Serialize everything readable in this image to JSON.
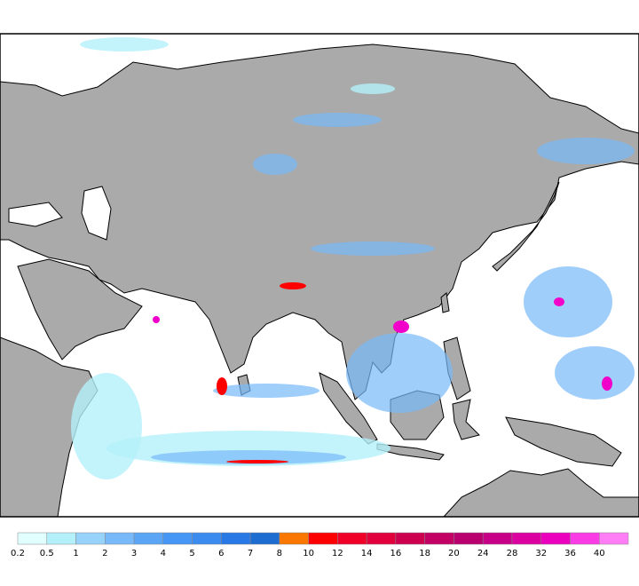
{
  "colorbar": {
    "labels": [
      "0.2",
      "0.5",
      "1",
      "2",
      "3",
      "4",
      "5",
      "6",
      "7",
      "8",
      "10",
      "12",
      "14",
      "16",
      "18",
      "20",
      "24",
      "28",
      "32",
      "36",
      "40"
    ],
    "colors": [
      "#e1ffff",
      "#b4f0fa",
      "#96d2fa",
      "#78b9fa",
      "#5aa5f5",
      "#4696f5",
      "#3c8cf0",
      "#2878e6",
      "#1e6ed2",
      "#fa7800",
      "#ff0000",
      "#f00028",
      "#e1003c",
      "#cd0050",
      "#c30064",
      "#b9006e",
      "#c80087",
      "#dc00a0",
      "#eb00be",
      "#fa3ce6",
      "#ff7df5"
    ]
  }
}
